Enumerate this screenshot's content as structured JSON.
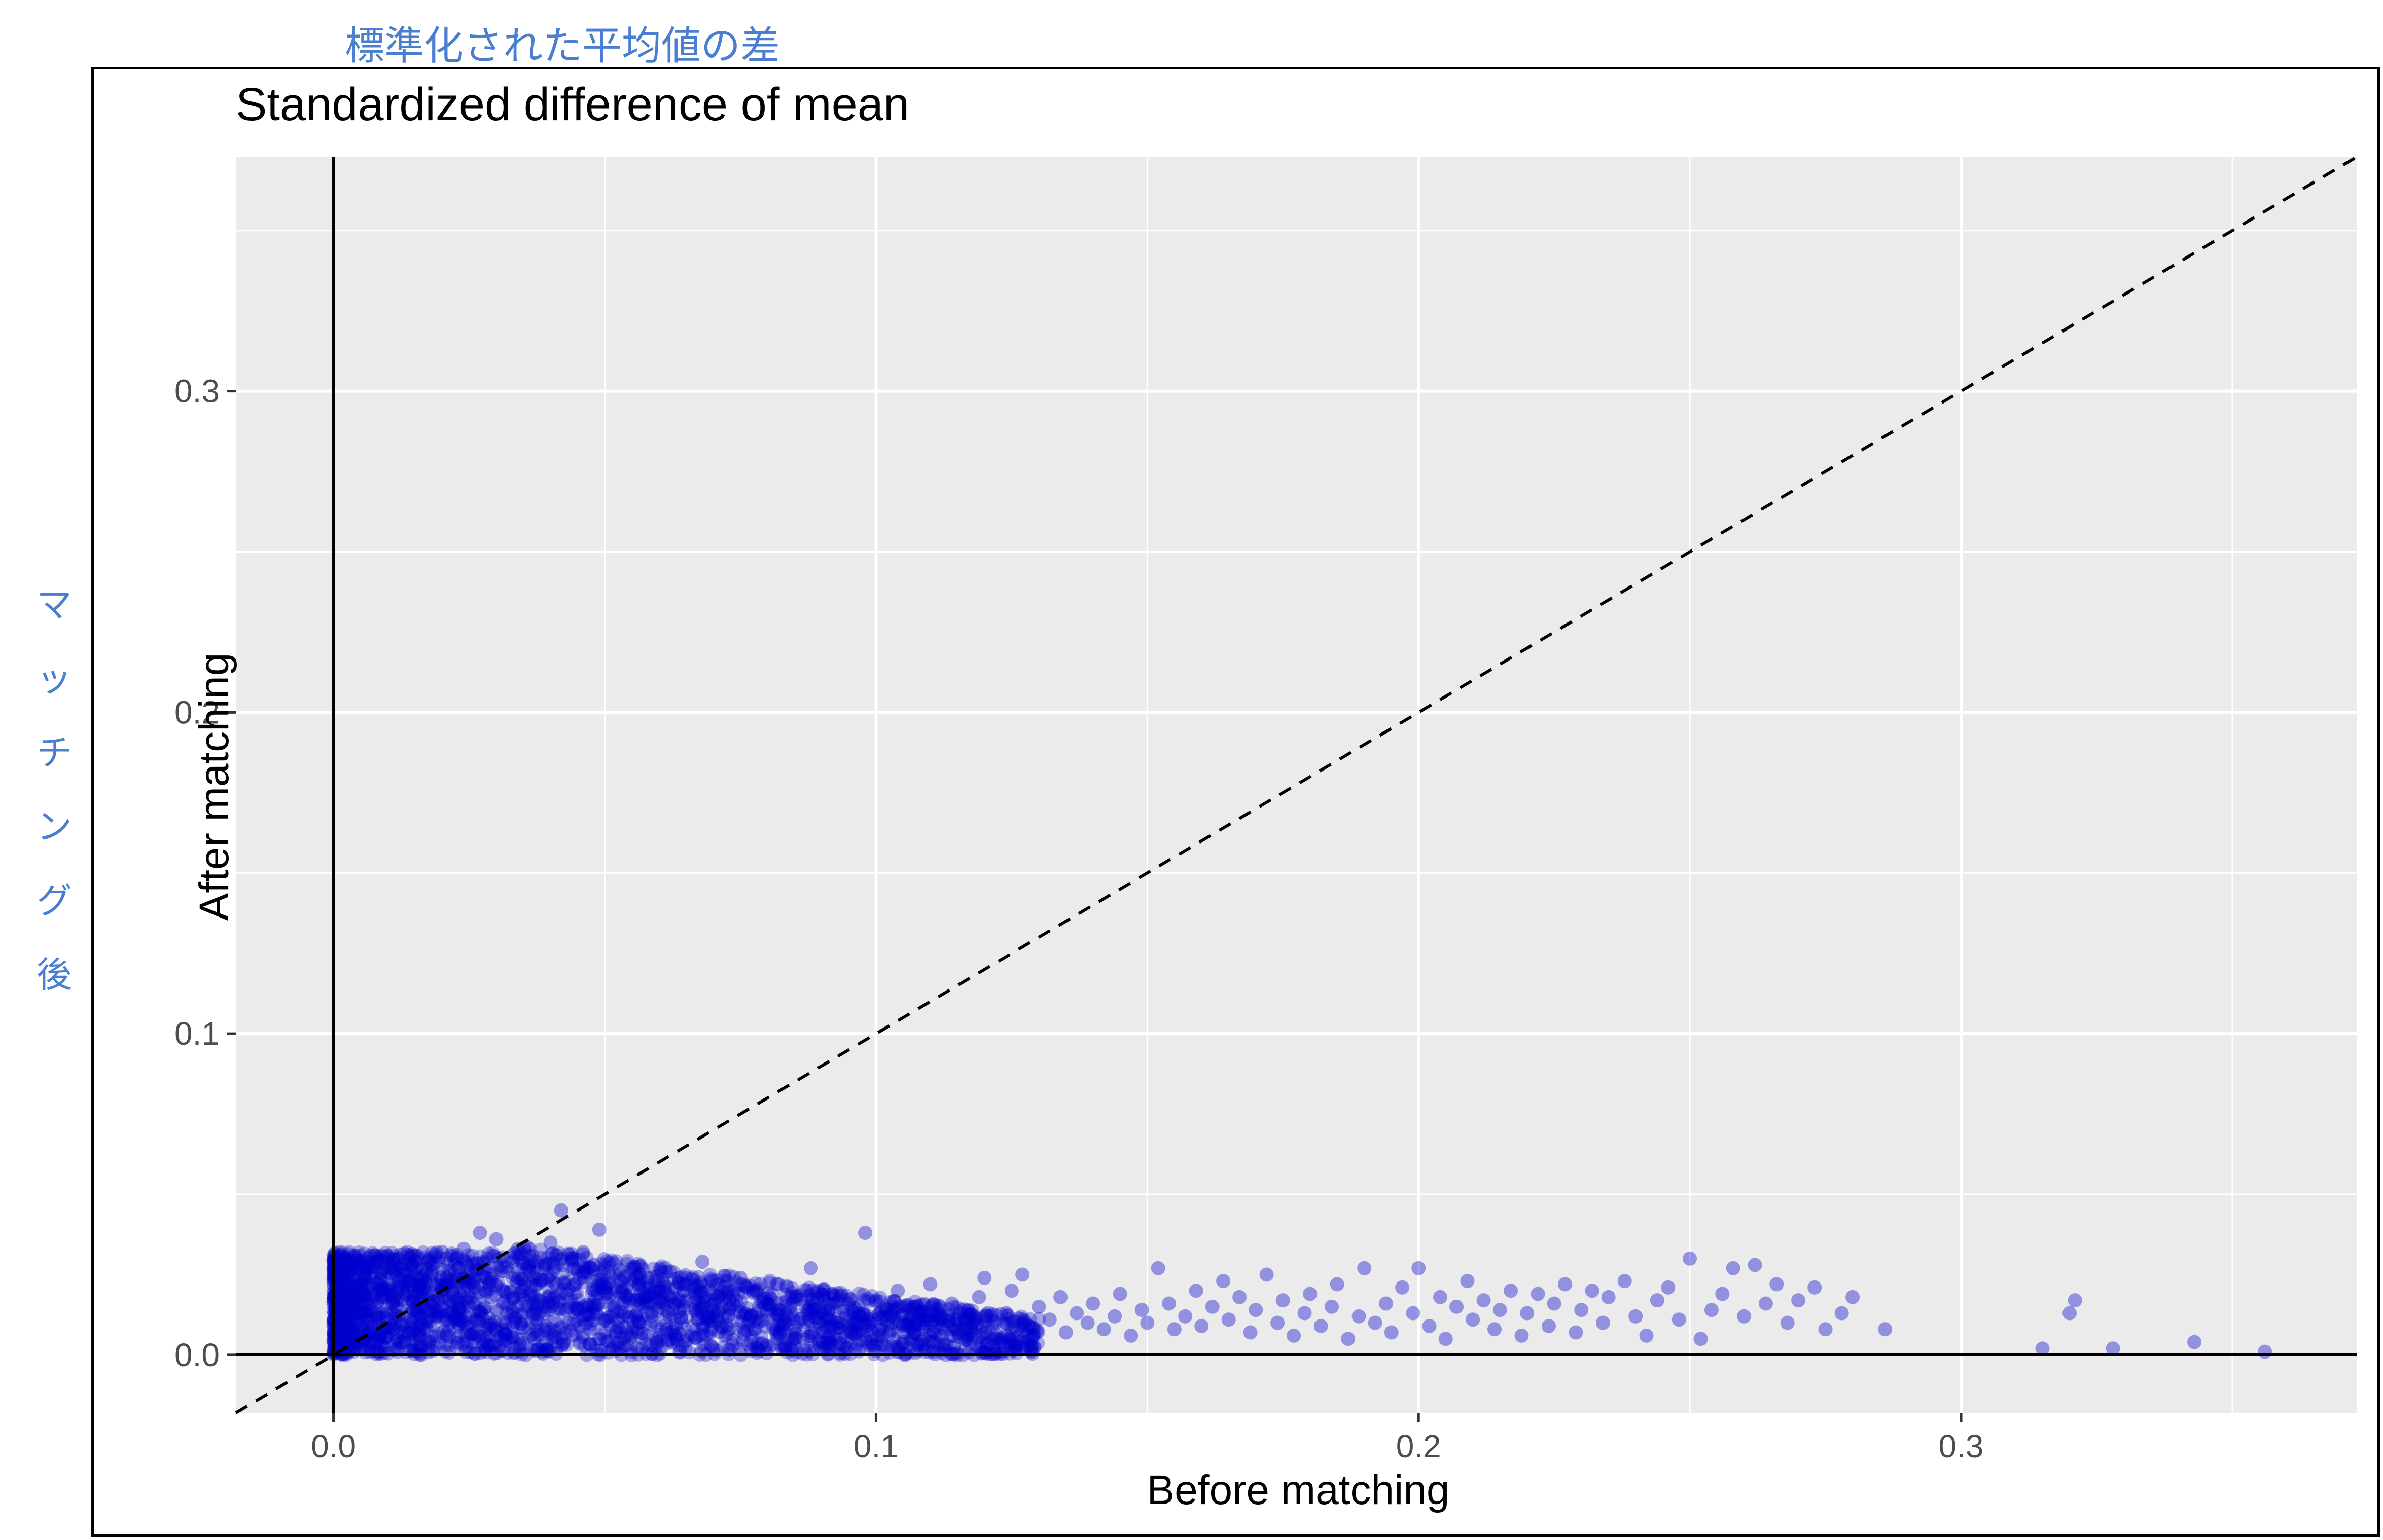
{
  "annotations": {
    "top_label": "標準化された平均値の差",
    "left_label": [
      "マ",
      "ッ",
      "チ",
      "ン",
      "グ",
      "後"
    ]
  },
  "chart_data": {
    "type": "scatter",
    "title": "Standardized difference of mean",
    "xlabel": "Before matching",
    "ylabel": "After matching",
    "xlim": [
      -0.018,
      0.373
    ],
    "ylim": [
      -0.018,
      0.373
    ],
    "xticks": [
      "0.0",
      "0.1",
      "0.2",
      "0.3"
    ],
    "yticks": [
      "0.0",
      "0.1",
      "0.2",
      "0.3"
    ],
    "grid": true,
    "reference_lines": {
      "identity_dashed": true,
      "x_zero": true,
      "y_zero": true
    },
    "point_color": "#0000cc",
    "panel_color": "#ebebeb",
    "points": [
      [
        0.0015,
        0.028
      ],
      [
        0.002,
        0.022
      ],
      [
        0.003,
        0.025
      ],
      [
        0.004,
        0.02
      ],
      [
        0.005,
        0.027
      ],
      [
        0.006,
        0.018
      ],
      [
        0.007,
        0.024
      ],
      [
        0.008,
        0.029
      ],
      [
        0.009,
        0.021
      ],
      [
        0.01,
        0.026
      ],
      [
        0.011,
        0.016
      ],
      [
        0.012,
        0.03
      ],
      [
        0.013,
        0.019
      ],
      [
        0.014,
        0.023
      ],
      [
        0.015,
        0.031
      ],
      [
        0.016,
        0.017
      ],
      [
        0.017,
        0.025
      ],
      [
        0.018,
        0.028
      ],
      [
        0.019,
        0.014
      ],
      [
        0.02,
        0.032
      ],
      [
        0.021,
        0.022
      ],
      [
        0.022,
        0.019
      ],
      [
        0.023,
        0.027
      ],
      [
        0.024,
        0.033
      ],
      [
        0.025,
        0.015
      ],
      [
        0.026,
        0.021
      ],
      [
        0.027,
        0.038
      ],
      [
        0.028,
        0.024
      ],
      [
        0.029,
        0.018
      ],
      [
        0.03,
        0.036
      ],
      [
        0.031,
        0.026
      ],
      [
        0.032,
        0.013
      ],
      [
        0.033,
        0.029
      ],
      [
        0.034,
        0.033
      ],
      [
        0.035,
        0.02
      ],
      [
        0.036,
        0.031
      ],
      [
        0.037,
        0.024
      ],
      [
        0.038,
        0.017
      ],
      [
        0.039,
        0.028
      ],
      [
        0.04,
        0.035
      ],
      [
        0.041,
        0.022
      ],
      [
        0.042,
        0.045
      ],
      [
        0.043,
        0.019
      ],
      [
        0.044,
        0.03
      ],
      [
        0.045,
        0.026
      ],
      [
        0.046,
        0.032
      ],
      [
        0.047,
        0.015
      ],
      [
        0.048,
        0.028
      ],
      [
        0.049,
        0.039
      ],
      [
        0.05,
        0.021
      ],
      [
        0.052,
        0.025
      ],
      [
        0.054,
        0.018
      ],
      [
        0.055,
        0.027
      ],
      [
        0.056,
        0.013
      ],
      [
        0.058,
        0.024
      ],
      [
        0.06,
        0.02
      ],
      [
        0.062,
        0.026
      ],
      [
        0.063,
        0.016
      ],
      [
        0.065,
        0.022
      ],
      [
        0.067,
        0.019
      ],
      [
        0.068,
        0.029
      ],
      [
        0.07,
        0.014
      ],
      [
        0.072,
        0.021
      ],
      [
        0.073,
        0.017
      ],
      [
        0.075,
        0.024
      ],
      [
        0.077,
        0.012
      ],
      [
        0.078,
        0.02
      ],
      [
        0.08,
        0.016
      ],
      [
        0.082,
        0.022
      ],
      [
        0.083,
        0.011
      ],
      [
        0.085,
        0.018
      ],
      [
        0.087,
        0.015
      ],
      [
        0.088,
        0.027
      ],
      [
        0.09,
        0.013
      ],
      [
        0.092,
        0.019
      ],
      [
        0.093,
        0.01
      ],
      [
        0.095,
        0.016
      ],
      [
        0.097,
        0.012
      ],
      [
        0.098,
        0.038
      ],
      [
        0.1,
        0.017
      ],
      [
        0.102,
        0.014
      ],
      [
        0.104,
        0.02
      ],
      [
        0.105,
        0.009
      ],
      [
        0.107,
        0.015
      ],
      [
        0.109,
        0.012
      ],
      [
        0.11,
        0.022
      ],
      [
        0.112,
        0.011
      ],
      [
        0.114,
        0.016
      ],
      [
        0.115,
        0.008
      ],
      [
        0.117,
        0.014
      ],
      [
        0.119,
        0.018
      ],
      [
        0.12,
        0.024
      ],
      [
        0.122,
        0.01
      ],
      [
        0.124,
        0.013
      ],
      [
        0.125,
        0.02
      ],
      [
        0.127,
        0.025
      ],
      [
        0.128,
        0.009
      ],
      [
        0.13,
        0.015
      ],
      [
        0.132,
        0.011
      ],
      [
        0.134,
        0.018
      ],
      [
        0.135,
        0.007
      ],
      [
        0.137,
        0.013
      ],
      [
        0.139,
        0.01
      ],
      [
        0.14,
        0.016
      ],
      [
        0.142,
        0.008
      ],
      [
        0.144,
        0.012
      ],
      [
        0.145,
        0.019
      ],
      [
        0.147,
        0.006
      ],
      [
        0.149,
        0.014
      ],
      [
        0.15,
        0.01
      ],
      [
        0.152,
        0.027
      ],
      [
        0.154,
        0.016
      ],
      [
        0.155,
        0.008
      ],
      [
        0.157,
        0.012
      ],
      [
        0.159,
        0.02
      ],
      [
        0.16,
        0.009
      ],
      [
        0.162,
        0.015
      ],
      [
        0.164,
        0.023
      ],
      [
        0.165,
        0.011
      ],
      [
        0.167,
        0.018
      ],
      [
        0.169,
        0.007
      ],
      [
        0.17,
        0.014
      ],
      [
        0.172,
        0.025
      ],
      [
        0.174,
        0.01
      ],
      [
        0.175,
        0.017
      ],
      [
        0.177,
        0.006
      ],
      [
        0.179,
        0.013
      ],
      [
        0.18,
        0.019
      ],
      [
        0.182,
        0.009
      ],
      [
        0.184,
        0.015
      ],
      [
        0.185,
        0.022
      ],
      [
        0.187,
        0.005
      ],
      [
        0.189,
        0.012
      ],
      [
        0.19,
        0.027
      ],
      [
        0.192,
        0.01
      ],
      [
        0.194,
        0.016
      ],
      [
        0.195,
        0.007
      ],
      [
        0.197,
        0.021
      ],
      [
        0.199,
        0.013
      ],
      [
        0.2,
        0.027
      ],
      [
        0.202,
        0.009
      ],
      [
        0.204,
        0.018
      ],
      [
        0.205,
        0.005
      ],
      [
        0.207,
        0.015
      ],
      [
        0.209,
        0.023
      ],
      [
        0.21,
        0.011
      ],
      [
        0.212,
        0.017
      ],
      [
        0.214,
        0.008
      ],
      [
        0.215,
        0.014
      ],
      [
        0.217,
        0.02
      ],
      [
        0.219,
        0.006
      ],
      [
        0.22,
        0.013
      ],
      [
        0.222,
        0.019
      ],
      [
        0.224,
        0.009
      ],
      [
        0.225,
        0.016
      ],
      [
        0.227,
        0.022
      ],
      [
        0.229,
        0.007
      ],
      [
        0.23,
        0.014
      ],
      [
        0.232,
        0.02
      ],
      [
        0.234,
        0.01
      ],
      [
        0.235,
        0.018
      ],
      [
        0.238,
        0.023
      ],
      [
        0.24,
        0.012
      ],
      [
        0.242,
        0.006
      ],
      [
        0.244,
        0.017
      ],
      [
        0.246,
        0.021
      ],
      [
        0.248,
        0.011
      ],
      [
        0.25,
        0.03
      ],
      [
        0.252,
        0.005
      ],
      [
        0.254,
        0.014
      ],
      [
        0.256,
        0.019
      ],
      [
        0.258,
        0.027
      ],
      [
        0.26,
        0.012
      ],
      [
        0.262,
        0.028
      ],
      [
        0.264,
        0.016
      ],
      [
        0.266,
        0.022
      ],
      [
        0.268,
        0.01
      ],
      [
        0.27,
        0.017
      ],
      [
        0.273,
        0.021
      ],
      [
        0.275,
        0.008
      ],
      [
        0.278,
        0.013
      ],
      [
        0.28,
        0.018
      ],
      [
        0.286,
        0.008
      ],
      [
        0.315,
        0.002
      ],
      [
        0.32,
        0.013
      ],
      [
        0.321,
        0.017
      ],
      [
        0.328,
        0.002
      ],
      [
        0.343,
        0.004
      ],
      [
        0.356,
        0.001
      ]
    ]
  }
}
